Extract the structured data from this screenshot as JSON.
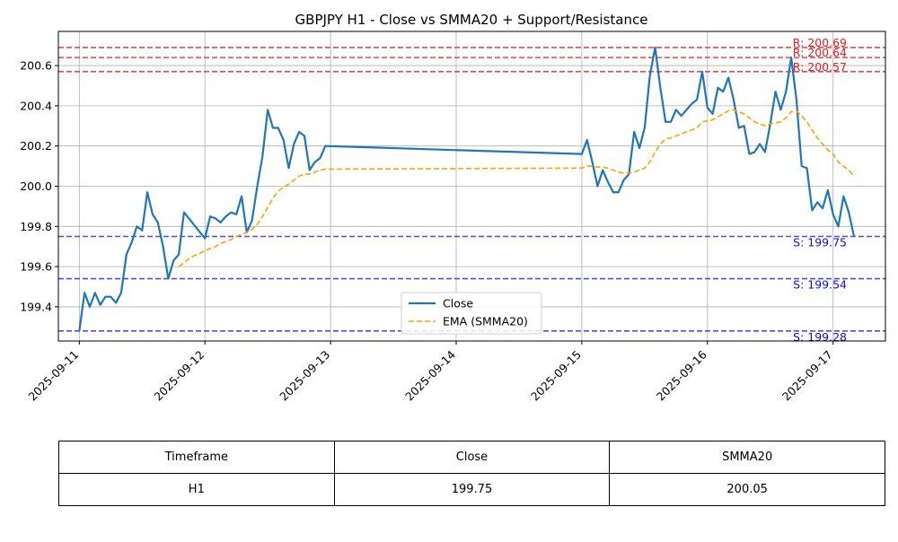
{
  "chart_data": {
    "type": "line",
    "title": "GBPJPY H1 - Close vs SMMA20 + Support/Resistance",
    "xlabel": "",
    "ylabel": "",
    "xlim": [
      "2025-09-10T20:00",
      "2025-09-17T10:00"
    ],
    "ylim": [
      199.23,
      200.77
    ],
    "x_ticks": [
      "2025-09-11",
      "2025-09-12",
      "2025-09-13",
      "2025-09-14",
      "2025-09-15",
      "2025-09-16",
      "2025-09-17"
    ],
    "y_ticks": [
      "199.4",
      "199.6",
      "199.8",
      "200.0",
      "200.2",
      "200.4",
      "200.6"
    ],
    "grid": true,
    "legend_position": "lower-center",
    "series": [
      {
        "name": "Close",
        "color": "#1f77b4",
        "style": "solid",
        "points": [
          [
            "2025-09-11T00:00",
            199.28
          ],
          [
            "2025-09-11T01:00",
            199.47
          ],
          [
            "2025-09-11T02:00",
            199.4
          ],
          [
            "2025-09-11T03:00",
            199.47
          ],
          [
            "2025-09-11T04:00",
            199.41
          ],
          [
            "2025-09-11T05:00",
            199.45
          ],
          [
            "2025-09-11T06:00",
            199.45
          ],
          [
            "2025-09-11T07:00",
            199.42
          ],
          [
            "2025-09-11T08:00",
            199.47
          ],
          [
            "2025-09-11T09:00",
            199.66
          ],
          [
            "2025-09-11T10:00",
            199.72
          ],
          [
            "2025-09-11T11:00",
            199.8
          ],
          [
            "2025-09-11T12:00",
            199.78
          ],
          [
            "2025-09-11T13:00",
            199.97
          ],
          [
            "2025-09-11T14:00",
            199.86
          ],
          [
            "2025-09-11T15:00",
            199.82
          ],
          [
            "2025-09-11T16:00",
            199.7
          ],
          [
            "2025-09-11T17:00",
            199.54
          ],
          [
            "2025-09-11T18:00",
            199.63
          ],
          [
            "2025-09-11T19:00",
            199.66
          ],
          [
            "2025-09-11T20:00",
            199.87
          ],
          [
            "2025-09-12T00:00",
            199.74
          ],
          [
            "2025-09-12T01:00",
            199.85
          ],
          [
            "2025-09-12T02:00",
            199.84
          ],
          [
            "2025-09-12T03:00",
            199.82
          ],
          [
            "2025-09-12T04:00",
            199.85
          ],
          [
            "2025-09-12T05:00",
            199.87
          ],
          [
            "2025-09-12T06:00",
            199.86
          ],
          [
            "2025-09-12T07:00",
            199.95
          ],
          [
            "2025-09-12T08:00",
            199.77
          ],
          [
            "2025-09-12T09:00",
            199.83
          ],
          [
            "2025-09-12T10:00",
            200.0
          ],
          [
            "2025-09-12T11:00",
            200.15
          ],
          [
            "2025-09-12T12:00",
            200.38
          ],
          [
            "2025-09-12T13:00",
            200.29
          ],
          [
            "2025-09-12T14:00",
            200.29
          ],
          [
            "2025-09-12T15:00",
            200.23
          ],
          [
            "2025-09-12T16:00",
            200.09
          ],
          [
            "2025-09-12T17:00",
            200.21
          ],
          [
            "2025-09-12T18:00",
            200.27
          ],
          [
            "2025-09-12T19:00",
            200.25
          ],
          [
            "2025-09-12T20:00",
            200.08
          ],
          [
            "2025-09-12T21:00",
            200.12
          ],
          [
            "2025-09-12T22:00",
            200.14
          ],
          [
            "2025-09-12T23:00",
            200.2
          ],
          [
            "2025-09-15T00:00",
            200.16
          ],
          [
            "2025-09-15T01:00",
            200.23
          ],
          [
            "2025-09-15T02:00",
            200.12
          ],
          [
            "2025-09-15T03:00",
            200.0
          ],
          [
            "2025-09-15T04:00",
            200.08
          ],
          [
            "2025-09-15T05:00",
            200.02
          ],
          [
            "2025-09-15T06:00",
            199.97
          ],
          [
            "2025-09-15T07:00",
            199.97
          ],
          [
            "2025-09-15T08:00",
            200.03
          ],
          [
            "2025-09-15T09:00",
            200.06
          ],
          [
            "2025-09-15T10:00",
            200.27
          ],
          [
            "2025-09-15T11:00",
            200.19
          ],
          [
            "2025-09-15T12:00",
            200.29
          ],
          [
            "2025-09-15T13:00",
            200.55
          ],
          [
            "2025-09-15T14:00",
            200.69
          ],
          [
            "2025-09-15T15:00",
            200.49
          ],
          [
            "2025-09-15T16:00",
            200.32
          ],
          [
            "2025-09-15T17:00",
            200.32
          ],
          [
            "2025-09-15T18:00",
            200.38
          ],
          [
            "2025-09-15T19:00",
            200.35
          ],
          [
            "2025-09-15T20:00",
            200.38
          ],
          [
            "2025-09-15T21:00",
            200.41
          ],
          [
            "2025-09-15T22:00",
            200.43
          ],
          [
            "2025-09-15T23:00",
            200.57
          ],
          [
            "2025-09-16T00:00",
            200.39
          ],
          [
            "2025-09-16T01:00",
            200.36
          ],
          [
            "2025-09-16T02:00",
            200.49
          ],
          [
            "2025-09-16T03:00",
            200.47
          ],
          [
            "2025-09-16T04:00",
            200.54
          ],
          [
            "2025-09-16T05:00",
            200.43
          ],
          [
            "2025-09-16T06:00",
            200.29
          ],
          [
            "2025-09-16T07:00",
            200.3
          ],
          [
            "2025-09-16T08:00",
            200.16
          ],
          [
            "2025-09-16T09:00",
            200.17
          ],
          [
            "2025-09-16T10:00",
            200.21
          ],
          [
            "2025-09-16T11:00",
            200.17
          ],
          [
            "2025-09-16T12:00",
            200.31
          ],
          [
            "2025-09-16T13:00",
            200.47
          ],
          [
            "2025-09-16T14:00",
            200.38
          ],
          [
            "2025-09-16T15:00",
            200.47
          ],
          [
            "2025-09-16T16:00",
            200.64
          ],
          [
            "2025-09-16T17:00",
            200.43
          ],
          [
            "2025-09-16T18:00",
            200.1
          ],
          [
            "2025-09-16T19:00",
            200.09
          ],
          [
            "2025-09-16T20:00",
            199.88
          ],
          [
            "2025-09-16T21:00",
            199.92
          ],
          [
            "2025-09-16T22:00",
            199.89
          ],
          [
            "2025-09-16T23:00",
            199.98
          ],
          [
            "2025-09-17T00:00",
            199.86
          ],
          [
            "2025-09-17T01:00",
            199.8
          ],
          [
            "2025-09-17T02:00",
            199.95
          ],
          [
            "2025-09-17T03:00",
            199.87
          ],
          [
            "2025-09-17T04:00",
            199.75
          ]
        ]
      },
      {
        "name": "EMA (SMMA20)",
        "color": "#ffa500",
        "style": "dashed",
        "points": [
          [
            "2025-09-11T19:00",
            199.6
          ],
          [
            "2025-09-11T20:00",
            199.62
          ],
          [
            "2025-09-11T21:00",
            199.64
          ],
          [
            "2025-09-11T22:00",
            199.655
          ],
          [
            "2025-09-11T23:00",
            199.665
          ],
          [
            "2025-09-12T00:00",
            199.68
          ],
          [
            "2025-09-12T01:00",
            199.69
          ],
          [
            "2025-09-12T02:00",
            199.7
          ],
          [
            "2025-09-12T03:00",
            199.715
          ],
          [
            "2025-09-12T04:00",
            199.725
          ],
          [
            "2025-09-12T05:00",
            199.735
          ],
          [
            "2025-09-12T06:00",
            199.75
          ],
          [
            "2025-09-12T07:00",
            199.76
          ],
          [
            "2025-09-12T08:00",
            199.77
          ],
          [
            "2025-09-12T09:00",
            199.785
          ],
          [
            "2025-09-12T10:00",
            199.81
          ],
          [
            "2025-09-12T11:00",
            199.85
          ],
          [
            "2025-09-12T12:00",
            199.895
          ],
          [
            "2025-09-12T13:00",
            199.94
          ],
          [
            "2025-09-12T14:00",
            199.975
          ],
          [
            "2025-09-12T15:00",
            199.995
          ],
          [
            "2025-09-12T16:00",
            200.01
          ],
          [
            "2025-09-12T17:00",
            200.03
          ],
          [
            "2025-09-12T18:00",
            200.05
          ],
          [
            "2025-09-12T19:00",
            200.06
          ],
          [
            "2025-09-12T20:00",
            200.06
          ],
          [
            "2025-09-12T21:00",
            200.07
          ],
          [
            "2025-09-12T22:00",
            200.08
          ],
          [
            "2025-09-12T23:00",
            200.085
          ],
          [
            "2025-09-15T00:00",
            200.09
          ],
          [
            "2025-09-15T01:00",
            200.1
          ],
          [
            "2025-09-15T02:00",
            200.1
          ],
          [
            "2025-09-15T03:00",
            200.095
          ],
          [
            "2025-09-15T04:00",
            200.095
          ],
          [
            "2025-09-15T05:00",
            200.09
          ],
          [
            "2025-09-15T06:00",
            200.08
          ],
          [
            "2025-09-15T07:00",
            200.07
          ],
          [
            "2025-09-15T08:00",
            200.065
          ],
          [
            "2025-09-15T09:00",
            200.065
          ],
          [
            "2025-09-15T10:00",
            200.07
          ],
          [
            "2025-09-15T11:00",
            200.08
          ],
          [
            "2025-09-15T12:00",
            200.09
          ],
          [
            "2025-09-15T13:00",
            200.12
          ],
          [
            "2025-09-15T14:00",
            200.17
          ],
          [
            "2025-09-15T15:00",
            200.21
          ],
          [
            "2025-09-15T16:00",
            200.235
          ],
          [
            "2025-09-15T17:00",
            200.24
          ],
          [
            "2025-09-15T18:00",
            200.25
          ],
          [
            "2025-09-15T19:00",
            200.26
          ],
          [
            "2025-09-15T20:00",
            200.27
          ],
          [
            "2025-09-15T21:00",
            200.28
          ],
          [
            "2025-09-15T22:00",
            200.29
          ],
          [
            "2025-09-15T23:00",
            200.32
          ],
          [
            "2025-09-16T00:00",
            200.325
          ],
          [
            "2025-09-16T01:00",
            200.33
          ],
          [
            "2025-09-16T02:00",
            200.345
          ],
          [
            "2025-09-16T03:00",
            200.36
          ],
          [
            "2025-09-16T04:00",
            200.375
          ],
          [
            "2025-09-16T05:00",
            200.38
          ],
          [
            "2025-09-16T06:00",
            200.37
          ],
          [
            "2025-09-16T07:00",
            200.36
          ],
          [
            "2025-09-16T08:00",
            200.34
          ],
          [
            "2025-09-16T09:00",
            200.32
          ],
          [
            "2025-09-16T10:00",
            200.31
          ],
          [
            "2025-09-16T11:00",
            200.3
          ],
          [
            "2025-09-16T12:00",
            200.31
          ],
          [
            "2025-09-16T13:00",
            200.315
          ],
          [
            "2025-09-16T14:00",
            200.32
          ],
          [
            "2025-09-16T15:00",
            200.34
          ],
          [
            "2025-09-16T16:00",
            200.37
          ],
          [
            "2025-09-16T17:00",
            200.375
          ],
          [
            "2025-09-16T18:00",
            200.35
          ],
          [
            "2025-09-16T19:00",
            200.32
          ],
          [
            "2025-09-16T20:00",
            200.28
          ],
          [
            "2025-09-16T21:00",
            200.24
          ],
          [
            "2025-09-16T22:00",
            200.21
          ],
          [
            "2025-09-16T23:00",
            200.18
          ],
          [
            "2025-09-17T00:00",
            200.16
          ],
          [
            "2025-09-17T01:00",
            200.12
          ],
          [
            "2025-09-17T02:00",
            200.1
          ],
          [
            "2025-09-17T03:00",
            200.08
          ],
          [
            "2025-09-17T04:00",
            200.05
          ]
        ]
      }
    ],
    "hlines": [
      {
        "kind": "resistance",
        "value": 200.69,
        "label": "R: 200.69",
        "color": "#e8383b"
      },
      {
        "kind": "resistance",
        "value": 200.64,
        "label": "R: 200.64",
        "color": "#e8383b"
      },
      {
        "kind": "resistance",
        "value": 200.57,
        "label": "R: 200.57",
        "color": "#e8383b"
      },
      {
        "kind": "support",
        "value": 199.75,
        "label": "S: 199.75",
        "color": "#3a3ae8"
      },
      {
        "kind": "support",
        "value": 199.54,
        "label": "S: 199.54",
        "color": "#3a3ae8"
      },
      {
        "kind": "support",
        "value": 199.28,
        "label": "S: 199.28",
        "color": "#3a3ae8"
      }
    ]
  },
  "table": {
    "headers": [
      "Timeframe",
      "Close",
      "SMMA20"
    ],
    "row": [
      "H1",
      "199.75",
      "200.05"
    ]
  }
}
